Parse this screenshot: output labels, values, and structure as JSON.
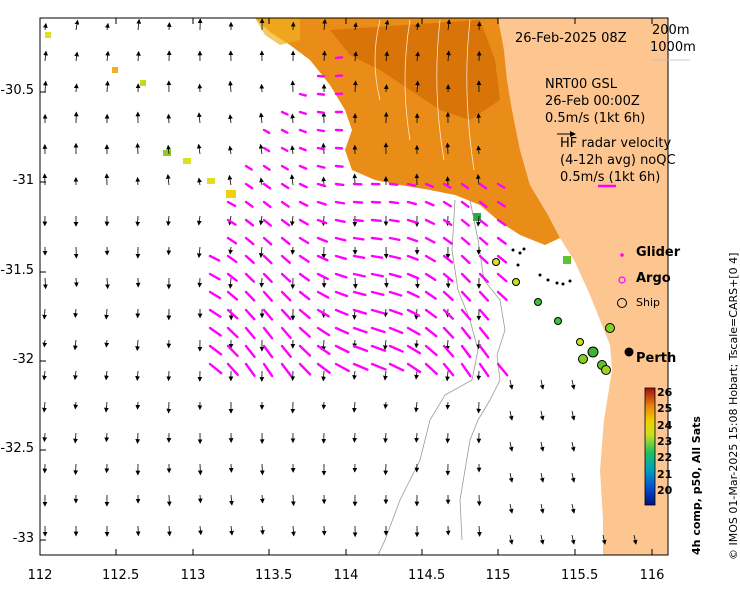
{
  "map": {
    "date_label": "26-Feb-2025 08Z",
    "contour_labels": [
      "200m",
      "1000m"
    ],
    "model_label": "NRT00 GSL",
    "model_time": "26-Feb 00:00Z",
    "model_scale": "0.5m/s (1kt 6h)",
    "radar_label": "HF radar velocity",
    "radar_sub": "(4-12h avg) noQC",
    "radar_scale": "0.5m/s (1kt 6h)",
    "legend": {
      "glider": "Glider",
      "argo": "Argo",
      "ship": "Ship"
    },
    "city": "Perth",
    "x_ticks": [
      "112",
      "112.5",
      "113",
      "113.5",
      "114",
      "114.5",
      "115",
      "115.5",
      "116"
    ],
    "y_ticks": [
      "-30.5",
      "-31",
      "-31.5",
      "-32",
      "-32.5",
      "-33"
    ],
    "colorbar": {
      "title": "4h comp, p50, All Sats",
      "ticks": [
        "26",
        "25",
        "24",
        "23",
        "22",
        "21",
        "20"
      ]
    },
    "credit": "© IMOS 01-Mar-2025 15:08 Hobart; Tscale=CARS+[0 4]",
    "colors": {
      "land": "#fdc691",
      "radar": "#ff00ff",
      "sst_warm": "#e8870c"
    }
  }
}
